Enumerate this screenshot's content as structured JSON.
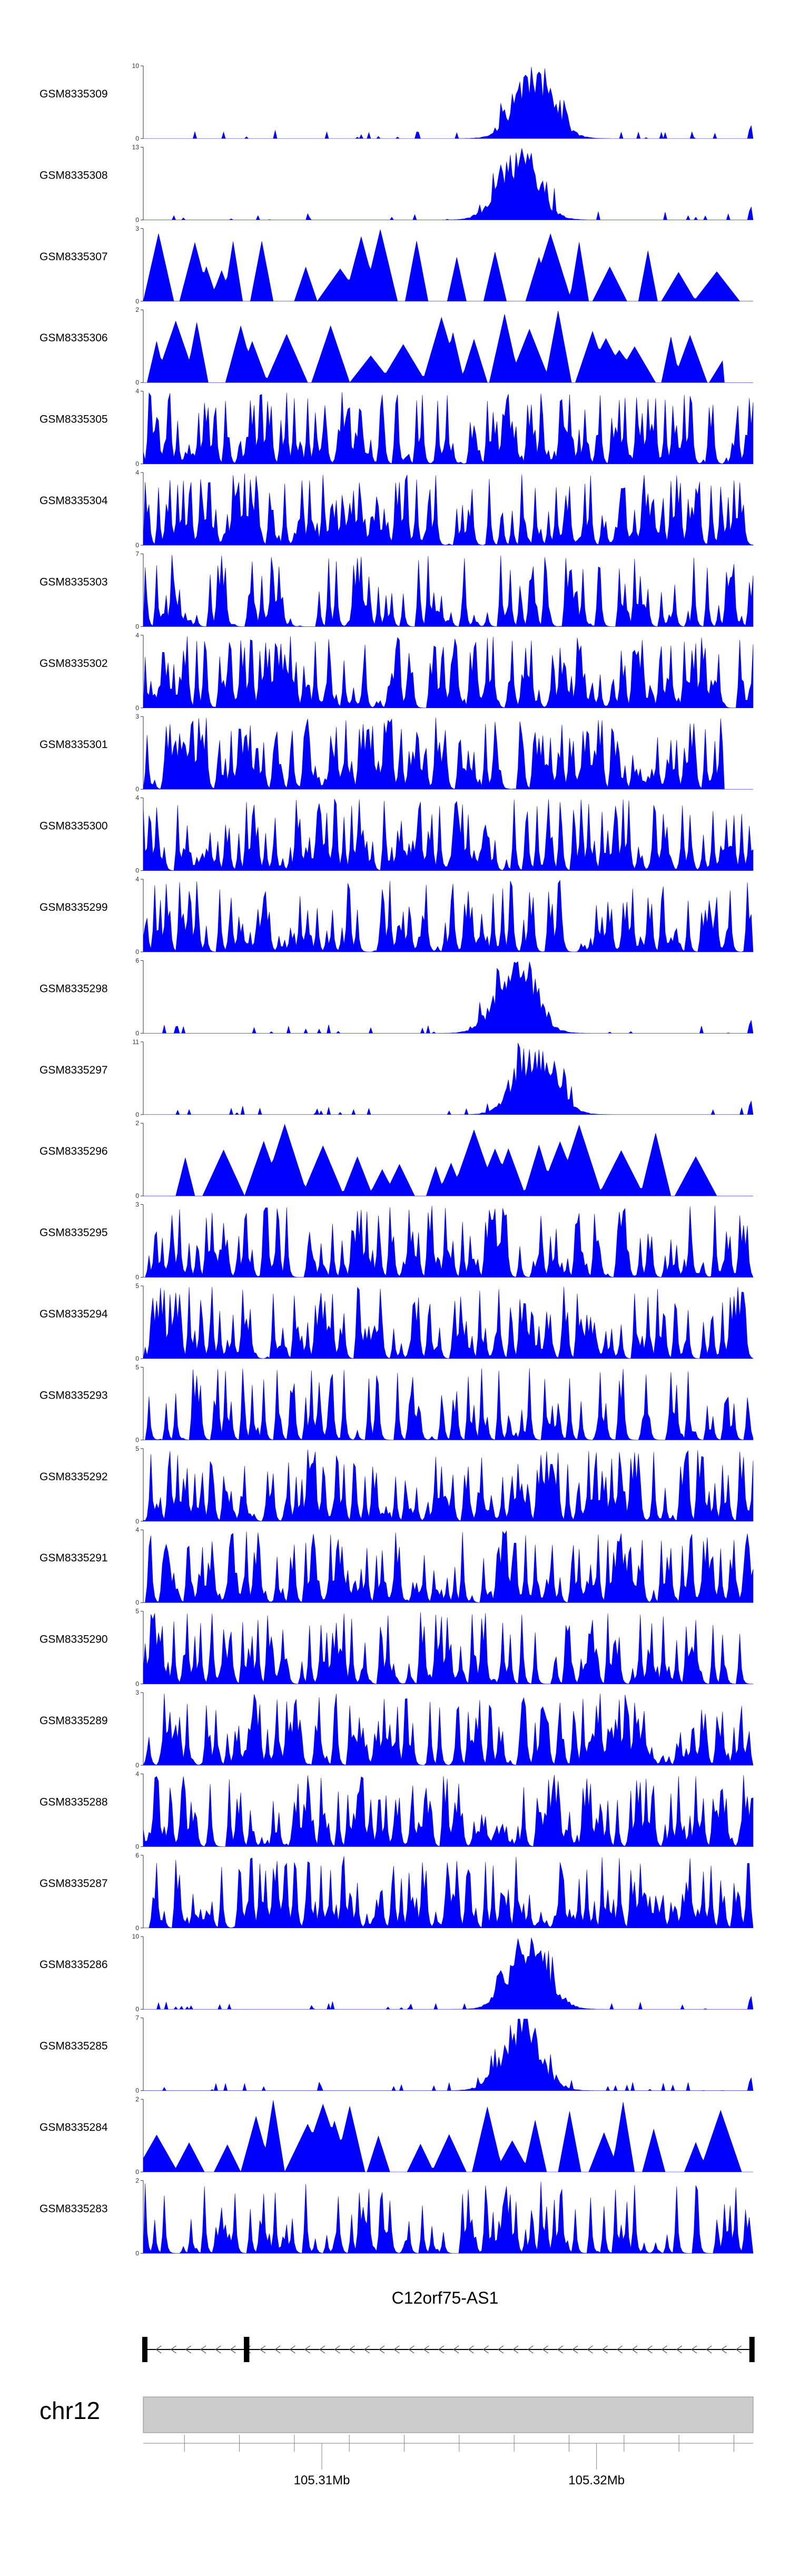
{
  "chart_data": {
    "type": "area",
    "title": "",
    "track_color": "#0000FF",
    "tracks": [
      {
        "name": "GSM8335309",
        "ymax": 10,
        "seed": 309,
        "profile": "peak",
        "gap": false
      },
      {
        "name": "GSM8335308",
        "ymax": 13,
        "seed": 308,
        "profile": "peak",
        "gap": false
      },
      {
        "name": "GSM8335307",
        "ymax": 3,
        "seed": 307,
        "profile": "sparse",
        "gap": false
      },
      {
        "name": "GSM8335306",
        "ymax": 2,
        "seed": 306,
        "profile": "sparse",
        "gap": true
      },
      {
        "name": "GSM8335305",
        "ymax": 4,
        "seed": 305,
        "profile": "dense",
        "gap": false
      },
      {
        "name": "GSM8335304",
        "ymax": 4,
        "seed": 304,
        "profile": "dense",
        "gap": false
      },
      {
        "name": "GSM8335303",
        "ymax": 7,
        "seed": 303,
        "profile": "medium",
        "gap": false
      },
      {
        "name": "GSM8335302",
        "ymax": 4,
        "seed": 302,
        "profile": "dense",
        "gap": false
      },
      {
        "name": "GSM8335301",
        "ymax": 3,
        "seed": 301,
        "profile": "dense",
        "gap": true
      },
      {
        "name": "GSM8335300",
        "ymax": 4,
        "seed": 300,
        "profile": "dense",
        "gap": false
      },
      {
        "name": "GSM8335299",
        "ymax": 4,
        "seed": 299,
        "profile": "dense",
        "gap": false
      },
      {
        "name": "GSM8335298",
        "ymax": 6,
        "seed": 298,
        "profile": "peak",
        "gap": false
      },
      {
        "name": "GSM8335297",
        "ymax": 11,
        "seed": 297,
        "profile": "peak",
        "gap": false
      },
      {
        "name": "GSM8335296",
        "ymax": 2,
        "seed": 296,
        "profile": "sparse",
        "gap": true
      },
      {
        "name": "GSM8335295",
        "ymax": 3,
        "seed": 295,
        "profile": "dense",
        "gap": false
      },
      {
        "name": "GSM8335294",
        "ymax": 5,
        "seed": 294,
        "profile": "dense",
        "gap": false
      },
      {
        "name": "GSM8335293",
        "ymax": 5,
        "seed": 293,
        "profile": "medium",
        "gap": false
      },
      {
        "name": "GSM8335292",
        "ymax": 5,
        "seed": 292,
        "profile": "dense",
        "gap": false
      },
      {
        "name": "GSM8335291",
        "ymax": 4,
        "seed": 291,
        "profile": "dense",
        "gap": false
      },
      {
        "name": "GSM8335290",
        "ymax": 5,
        "seed": 290,
        "profile": "dense",
        "gap": false
      },
      {
        "name": "GSM8335289",
        "ymax": 3,
        "seed": 289,
        "profile": "dense",
        "gap": false
      },
      {
        "name": "GSM8335288",
        "ymax": 4,
        "seed": 288,
        "profile": "dense",
        "gap": false
      },
      {
        "name": "GSM8335287",
        "ymax": 6,
        "seed": 287,
        "profile": "dense",
        "gap": false
      },
      {
        "name": "GSM8335286",
        "ymax": 10,
        "seed": 286,
        "profile": "peak",
        "gap": false
      },
      {
        "name": "GSM8335285",
        "ymax": 7,
        "seed": 285,
        "profile": "peak",
        "gap": false
      },
      {
        "name": "GSM8335284",
        "ymax": 2,
        "seed": 284,
        "profile": "sparse",
        "gap": false
      },
      {
        "name": "GSM8335283",
        "ymax": 2,
        "seed": 283,
        "profile": "medium",
        "gap": false
      }
    ],
    "ymin_label": "0",
    "gene": {
      "name": "C12orf75-AS1",
      "strand": "-",
      "start_mb": 105.3035,
      "end_mb": 105.3257,
      "exons_mb": [
        [
          105.3035,
          105.3036
        ],
        [
          105.3072,
          105.3074
        ],
        [
          105.3256,
          105.3257
        ]
      ]
    },
    "ideogram": {
      "chromosome": "chr12",
      "x_range_mb": [
        105.3035,
        105.3257
      ],
      "minor_ticks_mb": [
        105.305,
        105.307,
        105.309,
        105.311,
        105.313,
        105.315,
        105.317,
        105.319,
        105.321,
        105.323,
        105.325
      ],
      "major_ticks": [
        {
          "pos_mb": 105.31,
          "label": "105.31Mb"
        },
        {
          "pos_mb": 105.32,
          "label": "105.32Mb"
        }
      ]
    }
  }
}
